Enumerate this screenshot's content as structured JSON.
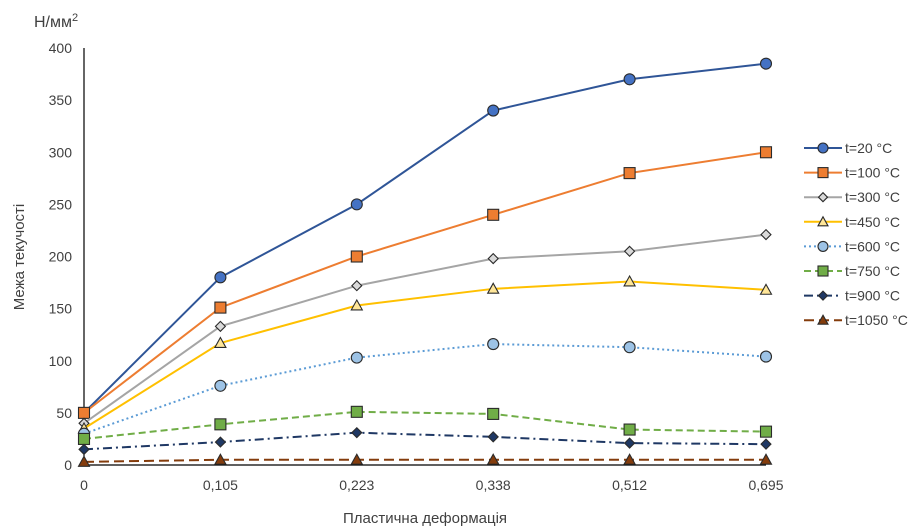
{
  "chart_data": {
    "type": "line",
    "unit": "Н/мм",
    "unit_sup": "2",
    "xlabel": "Пластична деформація",
    "ylabel": "Межа текучості",
    "categories": [
      "0",
      "0,105",
      "0,223",
      "0,338",
      "0,512",
      "0,695"
    ],
    "ylim": [
      0,
      400
    ],
    "yticks": [
      "0",
      "50",
      "100",
      "150",
      "200",
      "250",
      "300",
      "350",
      "400"
    ],
    "grid": false,
    "legend_position": "right",
    "series": [
      {
        "name": "t=20 °C",
        "values": [
          50,
          180,
          250,
          340,
          370,
          385
        ],
        "color": "#2f5597",
        "marker": "circle",
        "marker_fill": "#4472c4",
        "dash": "solid"
      },
      {
        "name": "t=100 °C",
        "values": [
          50,
          151,
          200,
          240,
          280,
          300
        ],
        "color": "#ed7d31",
        "marker": "square",
        "marker_fill": "#ed7d31",
        "dash": "solid"
      },
      {
        "name": "t=300 °C",
        "values": [
          40,
          133,
          172,
          198,
          205,
          221
        ],
        "color": "#a5a5a5",
        "marker": "diamond",
        "marker_fill": "#d9d9d9",
        "dash": "solid"
      },
      {
        "name": "t=450 °C",
        "values": [
          35,
          117,
          153,
          169,
          176,
          168
        ],
        "color": "#ffc000",
        "marker": "triangle",
        "marker_fill": "#ffe699",
        "dash": "solid"
      },
      {
        "name": "t=600 °C",
        "values": [
          30,
          76,
          103,
          116,
          113,
          104
        ],
        "color": "#5b9bd5",
        "marker": "circle",
        "marker_fill": "#9dc3e6",
        "dash": "dot"
      },
      {
        "name": "t=750 °C",
        "values": [
          25,
          39,
          51,
          49,
          34,
          32
        ],
        "color": "#70ad47",
        "marker": "square",
        "marker_fill": "#70ad47",
        "dash": "dash"
      },
      {
        "name": "t=900 °C",
        "values": [
          15,
          22,
          31,
          27,
          21,
          20
        ],
        "color": "#1f3864",
        "marker": "diamond",
        "marker_fill": "#1f3864",
        "dash": "dashdot"
      },
      {
        "name": "t=1050 °C",
        "values": [
          3,
          5,
          5,
          5,
          5,
          5
        ],
        "color": "#843c0c",
        "marker": "triangle",
        "marker_fill": "#843c0c",
        "dash": "longdash"
      }
    ]
  }
}
